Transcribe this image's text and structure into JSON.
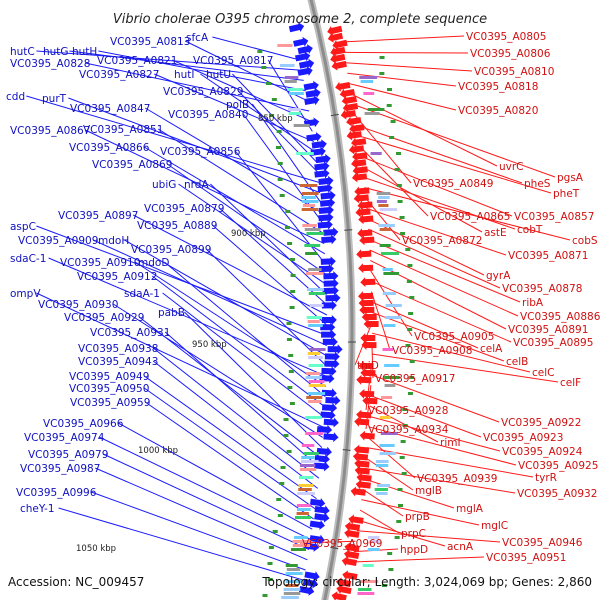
{
  "title": "Vibrio cholerae O395 chromosome 2, complete sequence",
  "footer": {
    "accession": "Accession: NC_009457",
    "summary": "Topology: circular; Length: 3,024,069 bp; Genes: 2,860"
  },
  "ticks": [
    "850 kbp",
    "900 kbp",
    "950 kbp",
    "1000 kbp",
    "1050 kbp"
  ],
  "colors": {
    "forward": "#1a1aff",
    "reverse": "#ff1a1a",
    "backbone": "#8c8c8c",
    "blue_label": "#1010c0",
    "red_label": "#d01010"
  },
  "left_labels": [
    "sfcA",
    "hutC",
    "hutG",
    "hutH",
    "VC0395_A0813",
    "VC0395_A0828",
    "VC0395_A0821",
    "VC0395_A0817",
    "VC0395_A0827",
    "hutI",
    "hutU",
    "VC0395_A0829",
    "cdd",
    "purT",
    "polB",
    "VC0395_A0847",
    "VC0395_A0840",
    "VC0395_A0851",
    "VC0395_A0867",
    "VC0395_A0866",
    "VC0395_A0856",
    "VC0395_A0869",
    "ubiG",
    "nrdA",
    "VC0395_A0879",
    "VC0395_A0897",
    "VC0395_A0889",
    "aspC",
    "VC0395_A0909",
    "mdoH",
    "VC0395_A0899",
    "sdaC-1",
    "VC0395_A0910",
    "mdoD",
    "VC0395_A0912",
    "sdaA-1",
    "ompV",
    "VC0395_A0930",
    "pabB",
    "VC0395_A0929",
    "VC0395_A0931",
    "VC0395_A0938",
    "VC0395_A0943",
    "VC0395_A0949",
    "VC0395_A0950",
    "VC0395_A0959",
    "VC0395_A0966",
    "VC0395_A0974",
    "VC0395_A0979",
    "VC0395_A0987",
    "VC0395_A0996",
    "cheY-1"
  ],
  "right_labels": [
    "VC0395_A0805",
    "VC0395_A0806",
    "VC0395_A0810",
    "VC0395_A0818",
    "VC0395_A0820",
    "uvrC",
    "pgsA",
    "VC0395_A0849",
    "pheS",
    "pheT",
    "VC0395_A0865",
    "VC0395_A0857",
    "astE",
    "cobT",
    "cobS",
    "VC0395_A0872",
    "VC0395_A0871",
    "gyrA",
    "VC0395_A0878",
    "ribA",
    "VC0395_A0886",
    "VC0395_A0891",
    "VC0395_A0905",
    "VC0395_A0895",
    "VC0395_A0908",
    "celA",
    "celB",
    "thiD",
    "celC",
    "VC0395_A0917",
    "celF",
    "VC0395_A0928",
    "VC0395_A0922",
    "VC0395_A0934",
    "VC0395_A0923",
    "rimI",
    "VC0395_A0924",
    "VC0395_A0925",
    "VC0395_A0939",
    "tyrR",
    "mglB",
    "VC0395_A0932",
    "mglA",
    "prpB",
    "mglC",
    "prpC",
    "acnA",
    "VC0395_A0946",
    "VC0395_A0969",
    "hppD",
    "VC0395_A0951"
  ]
}
